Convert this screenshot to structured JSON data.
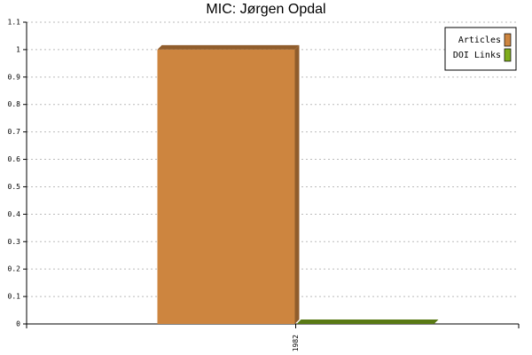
{
  "chart_data": {
    "type": "bar",
    "title": "MIC: Jørgen Opdal",
    "categories": [
      "1982"
    ],
    "series": [
      {
        "name": "Articles",
        "color": "#cd853f",
        "values": [
          1
        ]
      },
      {
        "name": "DOI Links",
        "color": "#7fad1c",
        "values": [
          0
        ]
      }
    ],
    "ylim": [
      0,
      1.1
    ],
    "yticks": [
      0,
      0.1,
      0.2,
      0.3,
      0.4,
      0.5,
      0.6,
      0.7,
      0.8,
      0.9,
      1,
      1.1
    ],
    "grid": true,
    "legend": "top-right"
  }
}
